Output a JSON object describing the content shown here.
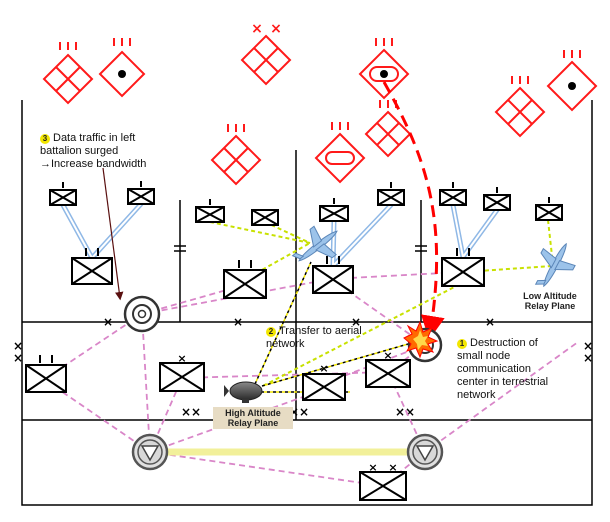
{
  "annotations": {
    "data_traffic": {
      "number": "3",
      "line1": "Data traffic in left",
      "line2": "battalion surged",
      "line3": "→Increase bandwidth"
    },
    "transfer": {
      "number": "2",
      "line1": "Transfer to aerial",
      "line2": "network"
    },
    "destruction": {
      "number": "1",
      "line1": "Destruction of",
      "line2": "small node",
      "line3": "communication",
      "line4": "center in terrestrial",
      "line5": "network"
    }
  },
  "relays": {
    "low_altitude": {
      "line1": "Low Altitude",
      "line2": "Relay Plane"
    },
    "high_altitude": {
      "line1": "High Altitude",
      "line2": "Relay Plane"
    }
  },
  "colors": {
    "enemy": "#ff1a1a",
    "mesh_link": "#d986c8",
    "aerial_link": "#c8e100",
    "trunk_link": "#f2f09a",
    "radio_link": "#8fb8e6",
    "attack_arrow": "#ff0000"
  }
}
